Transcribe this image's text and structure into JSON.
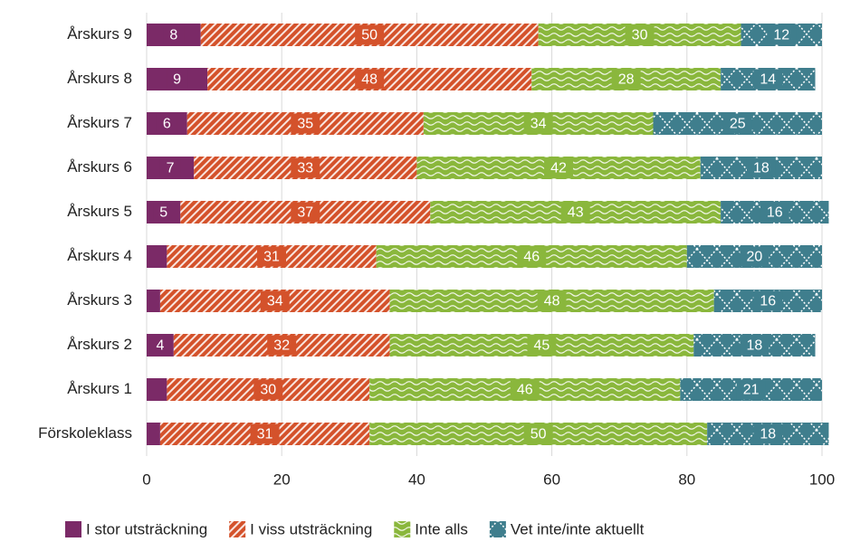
{
  "chart_data": {
    "type": "stacked_barh",
    "categories": [
      "Årskurs 9",
      "Årskurs 8",
      "Årskurs 7",
      "Årskurs 6",
      "Årskurs 5",
      "Årskurs 4",
      "Årskurs 3",
      "Årskurs 2",
      "Årskurs 1",
      "Förskoleklass"
    ],
    "series": [
      {
        "name": "I stor utsträckning",
        "color": "#7b2a67",
        "pattern": "solid",
        "values": [
          8,
          9,
          6,
          7,
          5,
          3,
          2,
          4,
          3,
          2
        ],
        "value_labels": [
          "8",
          "9",
          "6",
          "7",
          "5",
          null,
          null,
          "4",
          null,
          null
        ]
      },
      {
        "name": "I viss utsträckning",
        "color": "#d4522b",
        "pattern": "diagonal",
        "values": [
          50,
          48,
          35,
          33,
          37,
          31,
          34,
          32,
          30,
          31
        ],
        "value_labels": [
          "50",
          "48",
          "35",
          "33",
          "37",
          "31",
          "34",
          "32",
          "30",
          "31"
        ]
      },
      {
        "name": "Inte alls",
        "color": "#8ab73c",
        "pattern": "wave",
        "values": [
          30,
          28,
          34,
          42,
          43,
          46,
          48,
          45,
          46,
          50
        ],
        "value_labels": [
          "30",
          "28",
          "34",
          "42",
          "43",
          "46",
          "48",
          "45",
          "46",
          "50"
        ]
      },
      {
        "name": "Vet inte/inte aktuellt",
        "color": "#3f7e8d",
        "pattern": "cross",
        "values": [
          12,
          14,
          25,
          18,
          16,
          20,
          16,
          18,
          21,
          18
        ],
        "value_labels": [
          "12",
          "14",
          "25",
          "18",
          "16",
          "20",
          "16",
          "18",
          "21",
          "18"
        ]
      }
    ],
    "xlim": [
      0,
      100
    ],
    "xticks": [
      0,
      20,
      40,
      60,
      80,
      100
    ],
    "grid": true,
    "legend": "bottom"
  }
}
